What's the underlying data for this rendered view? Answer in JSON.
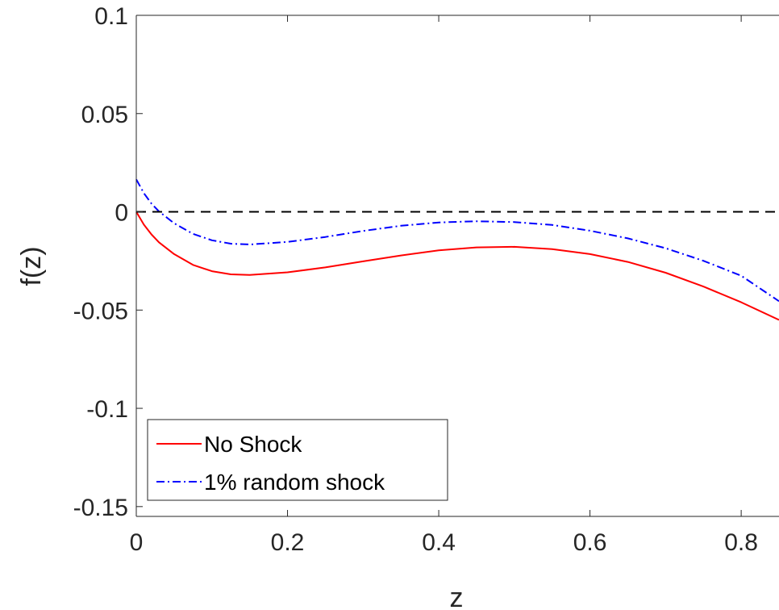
{
  "chart_data": {
    "type": "line",
    "title": "",
    "xlabel": "z",
    "ylabel": "f(z)",
    "xlim": [
      0,
      0.85
    ],
    "ylim": [
      -0.155,
      0.1
    ],
    "xticks": [
      0,
      0.2,
      0.4,
      0.6,
      0.8
    ],
    "xtick_labels": [
      "0",
      "0.2",
      "0.4",
      "0.6",
      "0.8"
    ],
    "yticks": [
      0.1,
      0.05,
      0,
      -0.05,
      -0.1,
      -0.15
    ],
    "ytick_labels": [
      "0.1",
      "0.05",
      "0",
      "-0.05",
      "-0.1",
      "-0.15"
    ],
    "grid": false,
    "legend_position": "bottom-left",
    "series": [
      {
        "name": "No Shock",
        "color": "#ff0000",
        "style": "solid",
        "x": [
          0,
          0.01,
          0.02,
          0.03,
          0.05,
          0.075,
          0.1,
          0.125,
          0.15,
          0.2,
          0.25,
          0.3,
          0.35,
          0.4,
          0.45,
          0.5,
          0.55,
          0.6,
          0.65,
          0.7,
          0.75,
          0.8,
          0.85
        ],
        "y": [
          0,
          -0.0065,
          -0.0115,
          -0.0155,
          -0.0215,
          -0.027,
          -0.0302,
          -0.0318,
          -0.0321,
          -0.0308,
          -0.0283,
          -0.0252,
          -0.0222,
          -0.0196,
          -0.0181,
          -0.0178,
          -0.019,
          -0.0215,
          -0.0255,
          -0.031,
          -0.038,
          -0.046,
          -0.055
        ]
      },
      {
        "name": "1% random shock",
        "color": "#0000ff",
        "style": "dash-dot",
        "x": [
          0,
          0.01,
          0.02,
          0.03,
          0.05,
          0.075,
          0.1,
          0.125,
          0.15,
          0.2,
          0.25,
          0.3,
          0.35,
          0.4,
          0.45,
          0.5,
          0.55,
          0.6,
          0.65,
          0.7,
          0.75,
          0.8,
          0.85
        ],
        "y": [
          0.0165,
          0.0095,
          0.0042,
          0.0002,
          -0.0058,
          -0.0112,
          -0.0145,
          -0.0162,
          -0.0166,
          -0.0153,
          -0.0128,
          -0.0097,
          -0.0071,
          -0.0054,
          -0.0048,
          -0.0052,
          -0.0067,
          -0.0096,
          -0.0135,
          -0.0185,
          -0.0249,
          -0.0325,
          -0.0455
        ]
      },
      {
        "name": "",
        "color": "#000000",
        "style": "dashed",
        "x": [
          0,
          0.85
        ],
        "y": [
          0,
          0
        ]
      }
    ],
    "legend": [
      {
        "label": "No Shock",
        "color": "#ff0000",
        "style": "solid"
      },
      {
        "label": "1% random shock",
        "color": "#0000ff",
        "style": "dash-dot"
      }
    ]
  }
}
